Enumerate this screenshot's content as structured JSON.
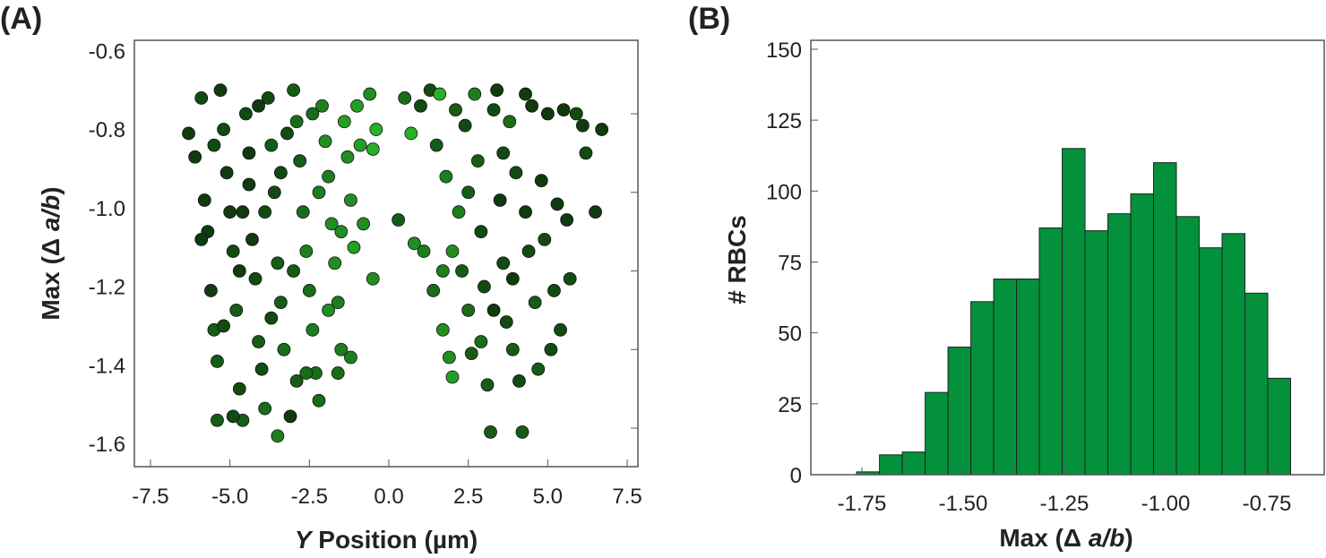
{
  "chart_data": [
    {
      "panel_label": "(A)",
      "type": "scatter",
      "xlabel_italic": "Y",
      "xlabel_rest": " Position (µm)",
      "ylabel_prefix": "Max (Δ ",
      "ylabel_italic": "a/b",
      "ylabel_suffix": ")",
      "xlim": [
        -8.0,
        8.0
      ],
      "ylim": [
        -1.795,
        -0.55
      ],
      "xticks": [
        "-7.5",
        "-5.0",
        "-2.5",
        "0.0",
        "2.5",
        "5.0",
        "7.5"
      ],
      "xtick_values": [
        -7.5,
        -5.0,
        -2.5,
        0.0,
        2.5,
        5.0,
        7.5
      ],
      "yticks": [
        "-0.6",
        "-0.8",
        "-1.0",
        "-1.2",
        "-1.4",
        "-1.6"
      ],
      "ytick_values": [
        -0.6,
        -0.8,
        -1.0,
        -1.2,
        -1.4,
        -1.6
      ],
      "color_dark": "#0b2a0b",
      "color_light": "#2fd12f",
      "note": "representative sample of points; third value = color lightness 0..1",
      "points": [
        [
          -6.3,
          -0.85,
          0.1
        ],
        [
          -6.1,
          -0.91,
          0.1
        ],
        [
          -5.9,
          -0.76,
          0.2
        ],
        [
          -5.8,
          -1.02,
          0.1
        ],
        [
          -5.7,
          -1.1,
          0.1
        ],
        [
          -5.6,
          -1.25,
          0.1
        ],
        [
          -5.5,
          -1.35,
          0.3
        ],
        [
          -5.4,
          -1.43,
          0.3
        ],
        [
          -5.3,
          -0.74,
          0.1
        ],
        [
          -5.2,
          -0.84,
          0.2
        ],
        [
          -5.1,
          -0.95,
          0.1
        ],
        [
          -5.0,
          -1.05,
          0.1
        ],
        [
          -4.9,
          -1.15,
          0.2
        ],
        [
          -4.8,
          -1.3,
          0.3
        ],
        [
          -4.7,
          -1.5,
          0.2
        ],
        [
          -4.6,
          -1.58,
          0.3
        ],
        [
          -5.4,
          -1.58,
          0.3
        ],
        [
          -4.5,
          -0.8,
          0.2
        ],
        [
          -4.4,
          -0.98,
          0.1
        ],
        [
          -4.3,
          -1.12,
          0.1
        ],
        [
          -4.2,
          -1.22,
          0.2
        ],
        [
          -4.1,
          -1.38,
          0.3
        ],
        [
          -4.0,
          -1.45,
          0.2
        ],
        [
          -3.9,
          -1.55,
          0.4
        ],
        [
          -3.8,
          -0.76,
          0.2
        ],
        [
          -3.7,
          -0.88,
          0.3
        ],
        [
          -3.6,
          -1.0,
          0.2
        ],
        [
          -3.5,
          -1.18,
          0.3
        ],
        [
          -3.4,
          -1.28,
          0.3
        ],
        [
          -3.3,
          -1.4,
          0.4
        ],
        [
          -3.5,
          -1.62,
          0.5
        ],
        [
          -3.1,
          -1.57,
          0.1
        ],
        [
          -3.0,
          -0.74,
          0.3
        ],
        [
          -2.9,
          -0.82,
          0.4
        ],
        [
          -2.8,
          -0.92,
          0.3
        ],
        [
          -2.7,
          -1.05,
          0.4
        ],
        [
          -2.6,
          -1.15,
          0.5
        ],
        [
          -2.5,
          -1.25,
          0.4
        ],
        [
          -2.4,
          -1.35,
          0.5
        ],
        [
          -2.3,
          -1.46,
          0.4
        ],
        [
          -2.2,
          -1.53,
          0.4
        ],
        [
          -2.1,
          -0.78,
          0.5
        ],
        [
          -2.0,
          -0.87,
          0.6
        ],
        [
          -1.9,
          -0.96,
          0.5
        ],
        [
          -1.8,
          -1.08,
          0.6
        ],
        [
          -1.7,
          -1.18,
          0.6
        ],
        [
          -1.6,
          -1.28,
          0.5
        ],
        [
          -1.5,
          -1.4,
          0.5
        ],
        [
          -1.4,
          -0.82,
          0.7
        ],
        [
          -1.3,
          -0.91,
          0.6
        ],
        [
          -1.2,
          -1.02,
          0.6
        ],
        [
          -1.1,
          -1.14,
          0.7
        ],
        [
          -1.0,
          -0.78,
          0.7
        ],
        [
          -0.9,
          -0.88,
          0.7
        ],
        [
          -0.8,
          -1.08,
          0.6
        ],
        [
          -0.6,
          -0.75,
          0.6
        ],
        [
          -0.5,
          -0.89,
          0.8
        ],
        [
          -0.4,
          -0.84,
          0.8
        ],
        [
          -0.5,
          -1.22,
          0.6
        ],
        [
          -1.2,
          -1.42,
          0.5
        ],
        [
          -1.6,
          -1.46,
          0.4
        ],
        [
          -2.6,
          -1.46,
          0.4
        ],
        [
          -2.9,
          -1.48,
          0.3
        ],
        [
          -4.9,
          -1.57,
          0.2
        ],
        [
          -5.9,
          -1.12,
          0.1
        ],
        [
          -5.2,
          -1.34,
          0.2
        ],
        [
          -4.7,
          -1.2,
          0.1
        ],
        [
          -4.4,
          -0.9,
          0.1
        ],
        [
          -3.9,
          -1.05,
          0.2
        ],
        [
          -3.2,
          -0.85,
          0.2
        ],
        [
          -2.2,
          -1.0,
          0.5
        ],
        [
          -1.5,
          -1.1,
          0.6
        ],
        [
          -4.1,
          -0.78,
          0.1
        ],
        [
          -3.4,
          -0.95,
          0.2
        ],
        [
          -2.4,
          -0.8,
          0.4
        ],
        [
          -1.9,
          -1.3,
          0.6
        ],
        [
          -3.0,
          -1.2,
          0.3
        ],
        [
          -4.6,
          -1.05,
          0.1
        ],
        [
          -5.5,
          -0.88,
          0.2
        ],
        [
          -3.7,
          -1.32,
          0.2
        ],
        [
          0.3,
          -1.07,
          0.3
        ],
        [
          0.5,
          -0.76,
          0.4
        ],
        [
          0.7,
          -0.85,
          0.8
        ],
        [
          0.8,
          -1.13,
          0.6
        ],
        [
          1.0,
          -0.78,
          0.2
        ],
        [
          1.1,
          -1.15,
          0.5
        ],
        [
          1.3,
          -0.74,
          0.2
        ],
        [
          1.4,
          -1.25,
          0.4
        ],
        [
          1.5,
          -0.88,
          0.3
        ],
        [
          1.6,
          -0.75,
          0.8
        ],
        [
          1.7,
          -1.35,
          0.6
        ],
        [
          1.8,
          -0.96,
          0.5
        ],
        [
          1.9,
          -1.42,
          0.6
        ],
        [
          2.0,
          -1.47,
          0.7
        ],
        [
          2.1,
          -0.79,
          0.3
        ],
        [
          2.2,
          -1.05,
          0.5
        ],
        [
          2.3,
          -1.2,
          0.3
        ],
        [
          2.4,
          -0.83,
          0.2
        ],
        [
          2.5,
          -1.3,
          0.4
        ],
        [
          2.6,
          -1.41,
          0.3
        ],
        [
          2.7,
          -0.75,
          0.5
        ],
        [
          2.8,
          -0.92,
          0.3
        ],
        [
          2.9,
          -1.1,
          0.2
        ],
        [
          3.0,
          -1.24,
          0.2
        ],
        [
          3.1,
          -1.49,
          0.3
        ],
        [
          3.2,
          -1.61,
          0.3
        ],
        [
          3.3,
          -0.79,
          0.2
        ],
        [
          3.4,
          -0.74,
          0.1
        ],
        [
          3.5,
          -1.02,
          0.1
        ],
        [
          3.6,
          -1.18,
          0.2
        ],
        [
          3.7,
          -1.33,
          0.2
        ],
        [
          3.8,
          -0.82,
          0.4
        ],
        [
          3.9,
          -1.4,
          0.3
        ],
        [
          4.0,
          -0.95,
          0.2
        ],
        [
          4.1,
          -1.48,
          0.2
        ],
        [
          4.2,
          -1.61,
          0.3
        ],
        [
          4.3,
          -0.75,
          0.1
        ],
        [
          4.4,
          -1.15,
          0.2
        ],
        [
          4.5,
          -0.78,
          0.1
        ],
        [
          4.6,
          -1.28,
          0.3
        ],
        [
          4.7,
          -1.45,
          0.3
        ],
        [
          4.8,
          -0.97,
          0.1
        ],
        [
          4.9,
          -1.12,
          0.2
        ],
        [
          5.0,
          -0.8,
          0.1
        ],
        [
          5.1,
          -1.4,
          0.2
        ],
        [
          5.2,
          -1.25,
          0.2
        ],
        [
          5.3,
          -1.03,
          0.1
        ],
        [
          5.4,
          -1.35,
          0.2
        ],
        [
          5.5,
          -0.79,
          0.1
        ],
        [
          5.6,
          -1.07,
          0.1
        ],
        [
          5.7,
          -1.22,
          0.2
        ],
        [
          5.9,
          -0.8,
          0.2
        ],
        [
          6.1,
          -0.83,
          0.1
        ],
        [
          6.2,
          -0.9,
          0.2
        ],
        [
          6.5,
          -1.05,
          0.1
        ],
        [
          6.7,
          -0.84,
          0.1
        ],
        [
          2.0,
          -1.15,
          0.6
        ],
        [
          2.5,
          -1.0,
          0.3
        ],
        [
          3.3,
          -1.3,
          0.1
        ],
        [
          3.9,
          -1.22,
          0.1
        ],
        [
          4.3,
          -1.05,
          0.1
        ],
        [
          2.9,
          -1.38,
          0.4
        ],
        [
          3.6,
          -0.9,
          0.2
        ],
        [
          1.7,
          -1.2,
          0.5
        ]
      ]
    },
    {
      "panel_label": "(B)",
      "type": "bar",
      "xlabel_prefix": "Max (Δ ",
      "xlabel_italic": "a/b",
      "xlabel_suffix": ")",
      "ylabel": "# RBCs",
      "xlim": [
        -1.875,
        -0.6
      ],
      "ylim": [
        0,
        150
      ],
      "xticks": [
        "-1.75",
        "-1.50",
        "-1.25",
        "-1.00",
        "-0.75"
      ],
      "xtick_values": [
        -1.75,
        -1.5,
        -1.25,
        -1.0,
        -0.75
      ],
      "yticks": [
        "0",
        "25",
        "50",
        "75",
        "100",
        "125",
        "150"
      ],
      "ytick_values": [
        0,
        25,
        50,
        75,
        100,
        125,
        150
      ],
      "bin_start": -1.763,
      "bin_width": 0.0564,
      "values": [
        1,
        7,
        8,
        29,
        45,
        61,
        69,
        69,
        87,
        115,
        86,
        92,
        99,
        110,
        91,
        80,
        85,
        64,
        34
      ],
      "bar_color": "#03913c"
    }
  ]
}
